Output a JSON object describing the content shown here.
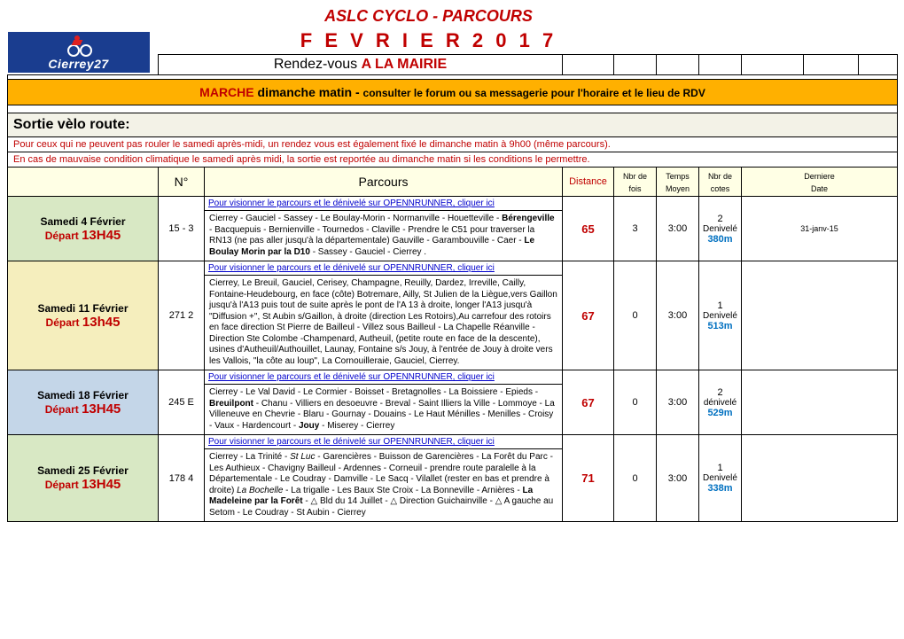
{
  "logo_text": "Cierrey27",
  "header": {
    "title1": "ASLC CYCLO    -    PARCOURS",
    "title2": "F E V R I E R    2 0 1 7",
    "rdv_prefix": "Rendez-vous ",
    "rdv_highlight": "A LA MAIRIE"
  },
  "marche": {
    "red": "MARCHE",
    "black": "  dimanche matin  -  ",
    "sub": "consulter le forum ou sa messagerie pour l'horaire et le lieu de RDV"
  },
  "sortie_title": "Sortie vèlo route:",
  "notes": {
    "line1": "Pour ceux qui ne peuvent pas rouler le samedi après-midi, un rendez vous est également fixé le dimanche matin à 9h00 (même parcours).",
    "line2": "En cas de mauvaise condition climatique le samedi après midi, la sortie est reportée au dimanche matin si les conditions le permettre."
  },
  "columns": {
    "num": "N°",
    "parcours": "Parcours",
    "distance": "Distance",
    "nbr_fois_top": "Nbr de",
    "nbr_fois_bot": "fois",
    "temps_top": "Temps",
    "temps_bot": "Moyen",
    "nbr_cotes_top": "Nbr de",
    "nbr_cotes_bot": "cotes",
    "derniere_top": "Derniere",
    "derniere_bot": "Date"
  },
  "link_text": " Pour visionner le parcours et le dénivelé sur OPENNRUNNER, cliquer ici",
  "rows": [
    {
      "bg": "bg-green",
      "date_line1": "Samedi 4 Février",
      "depart_label": "Départ  ",
      "depart_time": "13H45",
      "num": "15 - 3",
      "route_html": "Cierrey - Gauciel - Sassey - Le Boulay-Morin - Normanville - Houetteville - <b>Bérengeville</b> - Bacquepuis - Bernienville - Tournedos - Claville - Prendre le C51 pour traverser la RN13 (ne pas aller jusqu'à la départementale) Gauville - Garambouville - Caer - <b>Le Boulay Morin par la D10</b> - Sassey - Gauciel - Cierrey .",
      "distance": "65",
      "fois": "3",
      "temps": "3:00",
      "cotes_n": "2",
      "denivele_label": "Denivelé",
      "denivele_val": "380m",
      "last_date": "31-janv-15"
    },
    {
      "bg": "bg-yellow",
      "date_line1": "Samedi 11 Février",
      "depart_label": "Départ ",
      "depart_time": "13h45",
      "num": "271 2",
      "route_html": "Cierrey, Le Breuil, Gauciel, Cerisey, Champagne, Reuilly, Dardez, Irreville, Cailly, Fontaine-Heudebourg, en face (côte)  Botremare, Ailly, St Julien de la Liègue,vers Gaillon jusqu'à l'A13 puis tout de suite après le pont de l'A 13 à droite, longer l'A13 jusqu'à \"Diffusion +\", St Aubin s/Gaillon, à droite (direction Les Rotoirs),Au carrefour des rotoirs en face direction St Pierre de Bailleul - Villez sous Bailleul - La Chapelle Réanville -  Direction Ste Colombe -Champenard, Autheuil, (petite route en face de la descente), usines d'Autheuil/Authouillet, Launay, Fontaine s/s Jouy, à l'entrée de Jouy à droite vers les Vallois, \"la côte au loup\", La Cornouilleraie, Gauciel, Cierrey.",
      "distance": "67",
      "fois": "0",
      "temps": "3:00",
      "cotes_n": "1",
      "denivele_label": "Denivelé",
      "denivele_val": "513m",
      "last_date": ""
    },
    {
      "bg": "bg-blue",
      "date_line1": "Samedi 18 Février",
      "depart_label": "Départ  ",
      "depart_time": "13H45",
      "num": "245 E",
      "route_html": "Cierrey - Le Val David - Le Cormier - Boisset - Bretagnolles - La Boissiere - Epieds - <b>Breuilpont</b> - Chanu - Villiers en desoeuvre - Breval - Saint Illiers la Ville - Lommoye - La Villeneuve en Chevrie - Blaru - Gournay - Douains - Le Haut Ménilles - Menilles - Croisy - Vaux - Hardencourt - <b>Jouy</b> - Miserey - Cierrey",
      "distance": "67",
      "fois": "0",
      "temps": "3:00",
      "cotes_n": "2",
      "denivele_label": "dénivelé",
      "denivele_val": "529m",
      "last_date": ""
    },
    {
      "bg": "bg-green",
      "date_line1": "Samedi 25 Février",
      "depart_label": "Départ ",
      "depart_time": "13H45",
      "num": "178 4",
      "route_html": "Cierrey - La Trinité - <i>St Luc</i>  - Garencières - Buisson de Garencières - La Forêt du Parc - Les Authieux -  Chavigny Bailleul - Ardennes - Corneuil - prendre route paralelle à la Départementale - Le Coudray - Damville - Le Sacq - Vilallet (rester en bas et prendre à droite) <i>La Bochelle</i> - La trigalle - Les Baux Ste Croix - La Bonneville - Arnières - <b>La Madeleine par la Forêt</b> - △  Bld du 14 Juillet - △ Direction Guichainville - △ A gauche au Setom - Le Coudray - St Aubin - Cierrey",
      "distance": "71",
      "fois": "0",
      "temps": "3:00",
      "cotes_n": "1",
      "denivele_label": "Denivelé",
      "denivele_val": "338m",
      "last_date": ""
    }
  ]
}
